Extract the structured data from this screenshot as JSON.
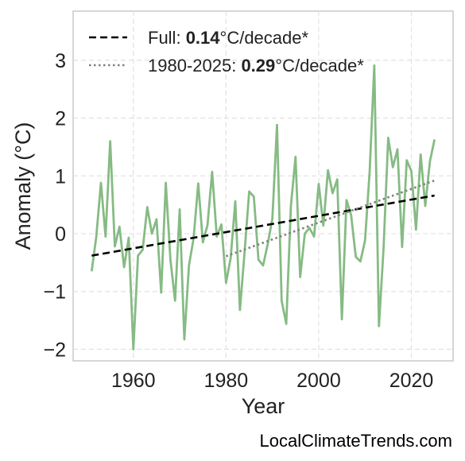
{
  "chart_data": {
    "type": "line",
    "xlabel": "Year",
    "ylabel": "Anomaly (°C)",
    "xlim": [
      1947,
      2029
    ],
    "ylim": [
      -2.2,
      3.85
    ],
    "x_ticks": [
      1960,
      1980,
      2000,
      2020
    ],
    "x_tick_labels": [
      "1960",
      "1980",
      "2000",
      "2020"
    ],
    "y_ticks": [
      -2,
      -1,
      0,
      1,
      2,
      3
    ],
    "y_tick_labels": [
      "−2",
      "−1",
      "0",
      "1",
      "2",
      "3"
    ],
    "grid": true,
    "legend_position": "top-left",
    "series": [
      {
        "style": "line",
        "color": "#86bb84",
        "x": [
          1951,
          1952,
          1953,
          1954,
          1955,
          1956,
          1957,
          1958,
          1959,
          1960,
          1961,
          1962,
          1963,
          1964,
          1965,
          1966,
          1967,
          1968,
          1969,
          1970,
          1971,
          1972,
          1973,
          1974,
          1975,
          1976,
          1977,
          1978,
          1979,
          1980,
          1981,
          1982,
          1983,
          1984,
          1985,
          1986,
          1987,
          1988,
          1989,
          1990,
          1991,
          1992,
          1993,
          1994,
          1995,
          1996,
          1997,
          1998,
          1999,
          2000,
          2001,
          2002,
          2003,
          2004,
          2005,
          2006,
          2007,
          2008,
          2009,
          2010,
          2011,
          2012,
          2013,
          2014,
          2015,
          2016,
          2017,
          2018,
          2019,
          2020,
          2021,
          2022,
          2023,
          2024,
          2025
        ],
        "values": [
          -0.65,
          -0.05,
          0.88,
          -0.05,
          1.6,
          -0.22,
          0.12,
          -0.58,
          -0.07,
          -2.0,
          -0.38,
          -0.28,
          0.46,
          0.0,
          0.25,
          -1.02,
          0.88,
          -0.45,
          -1.16,
          0.42,
          -1.83,
          -0.55,
          -0.08,
          0.87,
          -0.15,
          0.15,
          1.07,
          -0.05,
          0.16,
          -0.85,
          -0.42,
          0.56,
          -1.32,
          -0.32,
          0.73,
          0.64,
          -0.45,
          -0.55,
          -0.18,
          0.26,
          1.88,
          -1.16,
          -1.56,
          0.48,
          1.33,
          -0.75,
          0.0,
          0.1,
          -0.05,
          0.86,
          0.14,
          1.1,
          0.7,
          0.94,
          -1.48,
          0.58,
          0.32,
          -0.4,
          -0.48,
          -0.12,
          1.08,
          2.91,
          -1.6,
          -0.25,
          1.66,
          1.15,
          1.46,
          -0.23,
          1.27,
          1.08,
          0.07,
          1.37,
          0.48,
          1.25,
          1.63
        ]
      },
      {
        "style": "dashed",
        "color": "#000000",
        "x": [
          1951,
          2025
        ],
        "values": [
          -0.38,
          0.66
        ]
      },
      {
        "style": "dotted",
        "color": "#808080",
        "x": [
          1980,
          2025
        ],
        "values": [
          -0.39,
          0.92
        ]
      }
    ],
    "legend": [
      {
        "style": "dashed",
        "color": "#000000",
        "prefix": "Full: ",
        "value": "0.14",
        "suffix": "°C/decade*"
      },
      {
        "style": "dotted",
        "color": "#808080",
        "prefix": "1980-2025: ",
        "value": "0.29",
        "suffix": "°C/decade*"
      }
    ]
  },
  "source_label": "LocalClimateTrends.com"
}
